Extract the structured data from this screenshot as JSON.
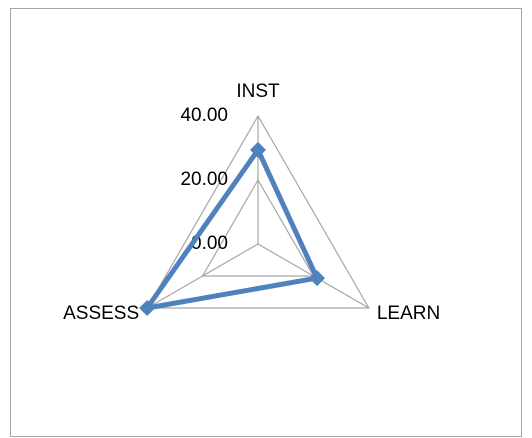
{
  "chart_data": {
    "type": "radar",
    "categories": [
      "INST",
      "LEARN",
      "ASSESS"
    ],
    "values": [
      29.4,
      21.3,
      40
    ],
    "color": "#4f81bd",
    "ylim": [
      0,
      40
    ],
    "yticks": [
      {
        "value": 0,
        "label": "0.00"
      },
      {
        "value": 20,
        "label": "20.00"
      },
      {
        "value": 40,
        "label": "40.00"
      }
    ],
    "grid": true
  }
}
